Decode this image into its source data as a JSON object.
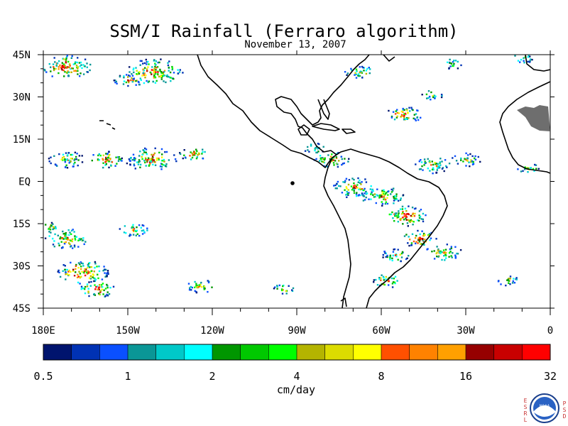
{
  "title": "SSM/I Rainfall (Ferraro algorithm)",
  "subtitle": "November 13, 2007",
  "map": {
    "lon_range": [
      -180,
      0
    ],
    "lat_range": [
      -45,
      45
    ],
    "lat_labels": [
      {
        "lat": 45,
        "text": "45N"
      },
      {
        "lat": 30,
        "text": "30N"
      },
      {
        "lat": 15,
        "text": "15N"
      },
      {
        "lat": 0,
        "text": "EQ"
      },
      {
        "lat": -15,
        "text": "15S"
      },
      {
        "lat": -30,
        "text": "30S"
      },
      {
        "lat": -45,
        "text": "45S"
      }
    ],
    "lon_labels": [
      {
        "lon": -180,
        "text": "180E"
      },
      {
        "lon": -150,
        "text": "150W"
      },
      {
        "lon": -120,
        "text": "120W"
      },
      {
        "lon": -90,
        "text": "90W"
      },
      {
        "lon": -60,
        "text": "60W"
      },
      {
        "lon": -30,
        "text": "30W"
      },
      {
        "lon": 0,
        "text": "0"
      }
    ],
    "rain_regions": [
      {
        "lon": -172,
        "lat": 41,
        "size": 7,
        "intensity": 0.9
      },
      {
        "lon": -141,
        "lat": 39,
        "size": 8,
        "intensity": 0.8
      },
      {
        "lon": -150,
        "lat": 36,
        "size": 4,
        "intensity": 0.6
      },
      {
        "lon": -172,
        "lat": 8,
        "size": 5,
        "intensity": 0.5
      },
      {
        "lon": -158,
        "lat": 8,
        "size": 5,
        "intensity": 0.9
      },
      {
        "lon": -142,
        "lat": 8,
        "size": 7,
        "intensity": 0.7
      },
      {
        "lon": -127,
        "lat": 10,
        "size": 4,
        "intensity": 0.6
      },
      {
        "lon": -172,
        "lat": -20,
        "size": 6,
        "intensity": 0.7
      },
      {
        "lon": -166,
        "lat": -32,
        "size": 7,
        "intensity": 1.0
      },
      {
        "lon": -161,
        "lat": -38,
        "size": 5,
        "intensity": 0.9
      },
      {
        "lon": -178,
        "lat": -16,
        "size": 3,
        "intensity": 0.5
      },
      {
        "lon": -148,
        "lat": -17,
        "size": 4,
        "intensity": 0.6
      },
      {
        "lon": -124,
        "lat": -37,
        "size": 4,
        "intensity": 0.6
      },
      {
        "lon": -95,
        "lat": -38,
        "size": 3,
        "intensity": 0.5
      },
      {
        "lon": -78,
        "lat": 8,
        "size": 5,
        "intensity": 0.7
      },
      {
        "lon": -84,
        "lat": 12,
        "size": 3,
        "intensity": 0.5
      },
      {
        "lon": -70,
        "lat": -2,
        "size": 6,
        "intensity": 0.6
      },
      {
        "lon": -60,
        "lat": -5,
        "size": 6,
        "intensity": 0.6
      },
      {
        "lon": -52,
        "lat": -12,
        "size": 6,
        "intensity": 0.8
      },
      {
        "lon": -47,
        "lat": -20,
        "size": 5,
        "intensity": 0.9
      },
      {
        "lon": -55,
        "lat": -26,
        "size": 4,
        "intensity": 0.6
      },
      {
        "lon": -58,
        "lat": -35,
        "size": 4,
        "intensity": 0.8
      },
      {
        "lon": -38,
        "lat": -25,
        "size": 5,
        "intensity": 0.6
      },
      {
        "lon": -52,
        "lat": 24,
        "size": 5,
        "intensity": 0.8
      },
      {
        "lon": -42,
        "lat": 31,
        "size": 3,
        "intensity": 0.5
      },
      {
        "lon": -68,
        "lat": 39,
        "size": 4,
        "intensity": 0.5
      },
      {
        "lon": -42,
        "lat": 6,
        "size": 5,
        "intensity": 0.5
      },
      {
        "lon": -30,
        "lat": 8,
        "size": 4,
        "intensity": 0.5
      },
      {
        "lon": -8,
        "lat": 5,
        "size": 3,
        "intensity": 0.5
      },
      {
        "lon": -15,
        "lat": -35,
        "size": 3,
        "intensity": 0.5
      },
      {
        "lon": -35,
        "lat": 42,
        "size": 3,
        "intensity": 0.4
      },
      {
        "lon": -10,
        "lat": 44,
        "size": 3,
        "intensity": 0.4
      }
    ]
  },
  "colorbar": {
    "colors": [
      "#00146e",
      "#0032b4",
      "#0a50ff",
      "#0a9696",
      "#00c8c8",
      "#00ffff",
      "#009600",
      "#00c800",
      "#00ff00",
      "#b4b400",
      "#dcdc00",
      "#ffff00",
      "#ff5000",
      "#ff8200",
      "#ffa000",
      "#960000",
      "#c80000",
      "#ff0000"
    ],
    "tick_labels": [
      "0.5",
      "1",
      "2",
      "4",
      "8",
      "16",
      "32"
    ],
    "unit_label": "cm/day"
  },
  "logo": {
    "text": "NOAA",
    "left_letters": [
      "E",
      "S",
      "R",
      "L"
    ],
    "right_letters": [
      "P",
      "S",
      "D"
    ]
  }
}
